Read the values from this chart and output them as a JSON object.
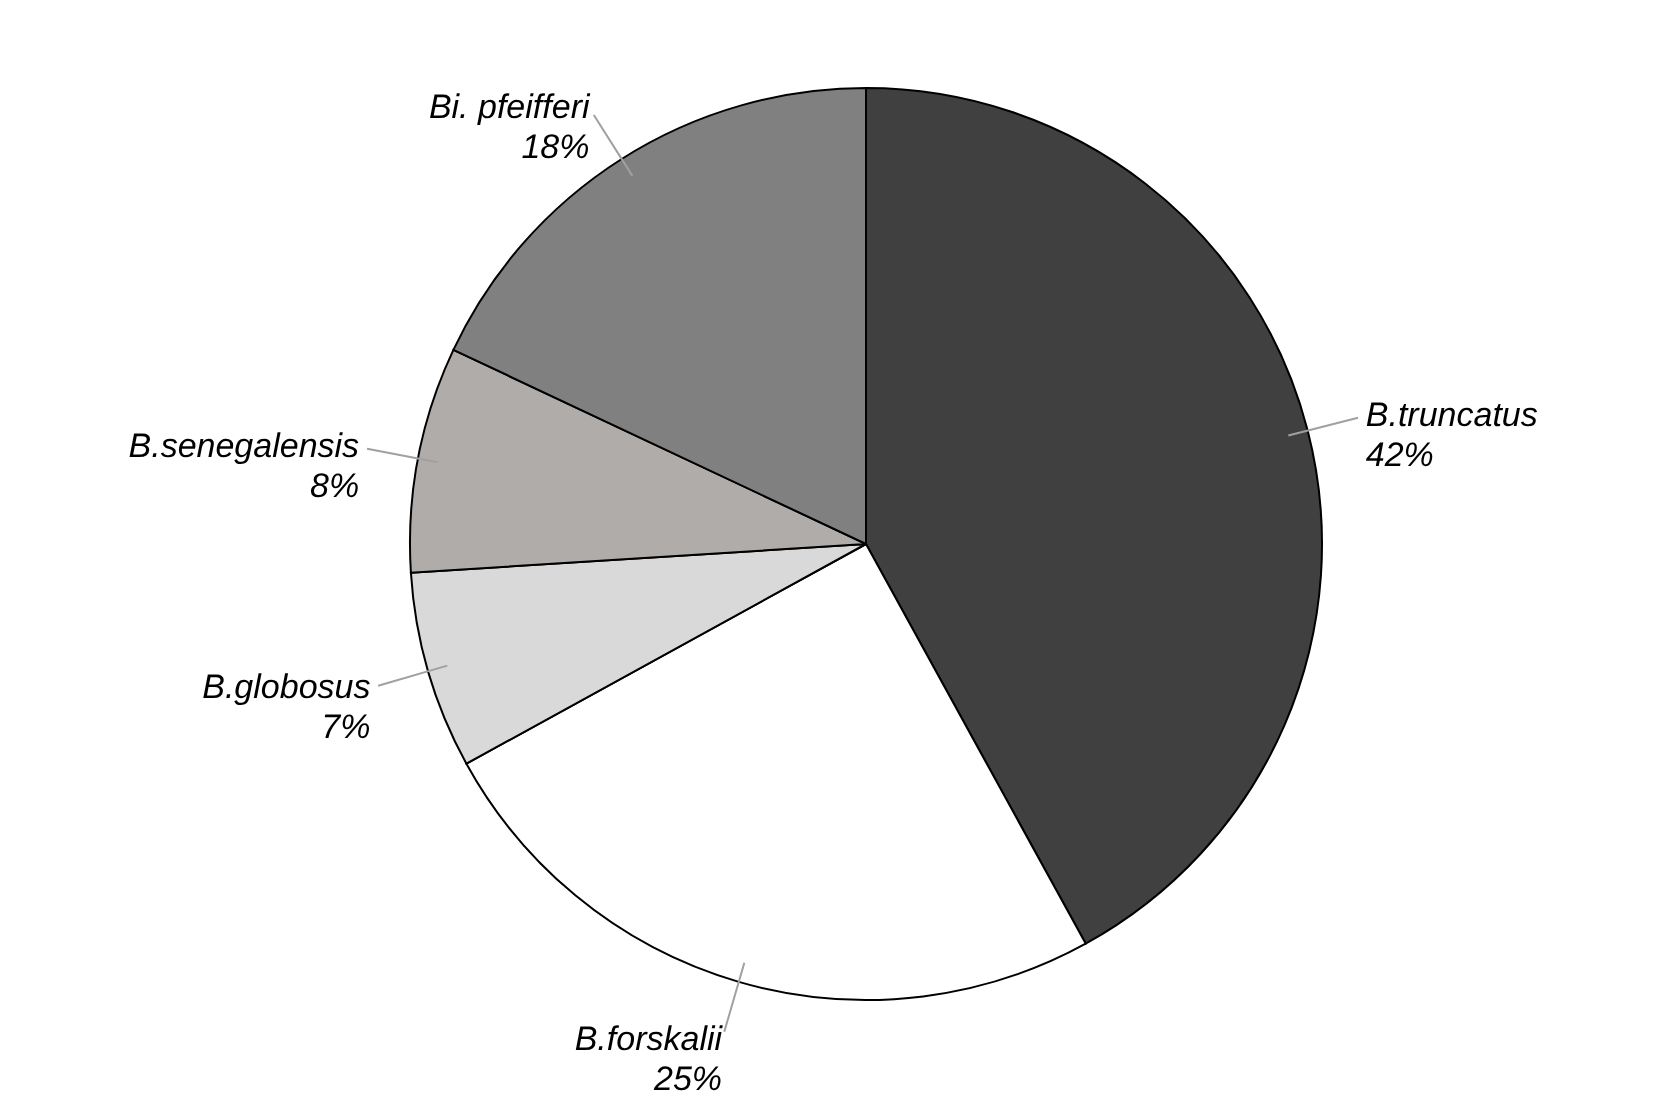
{
  "chart_data": {
    "type": "pie",
    "categories": [
      "B.truncatus",
      "B.forskalii",
      "B.globosus",
      "B.senegalensis",
      "Bi. pfeifferi"
    ],
    "values": [
      42,
      25,
      7,
      8,
      18
    ],
    "colors": [
      "#404040",
      "#ffffff",
      "#d9d9d9",
      "#b0acaa",
      "#808080"
    ],
    "value_labels": [
      "42%",
      "25%",
      "7%",
      "8%",
      "18%"
    ]
  }
}
